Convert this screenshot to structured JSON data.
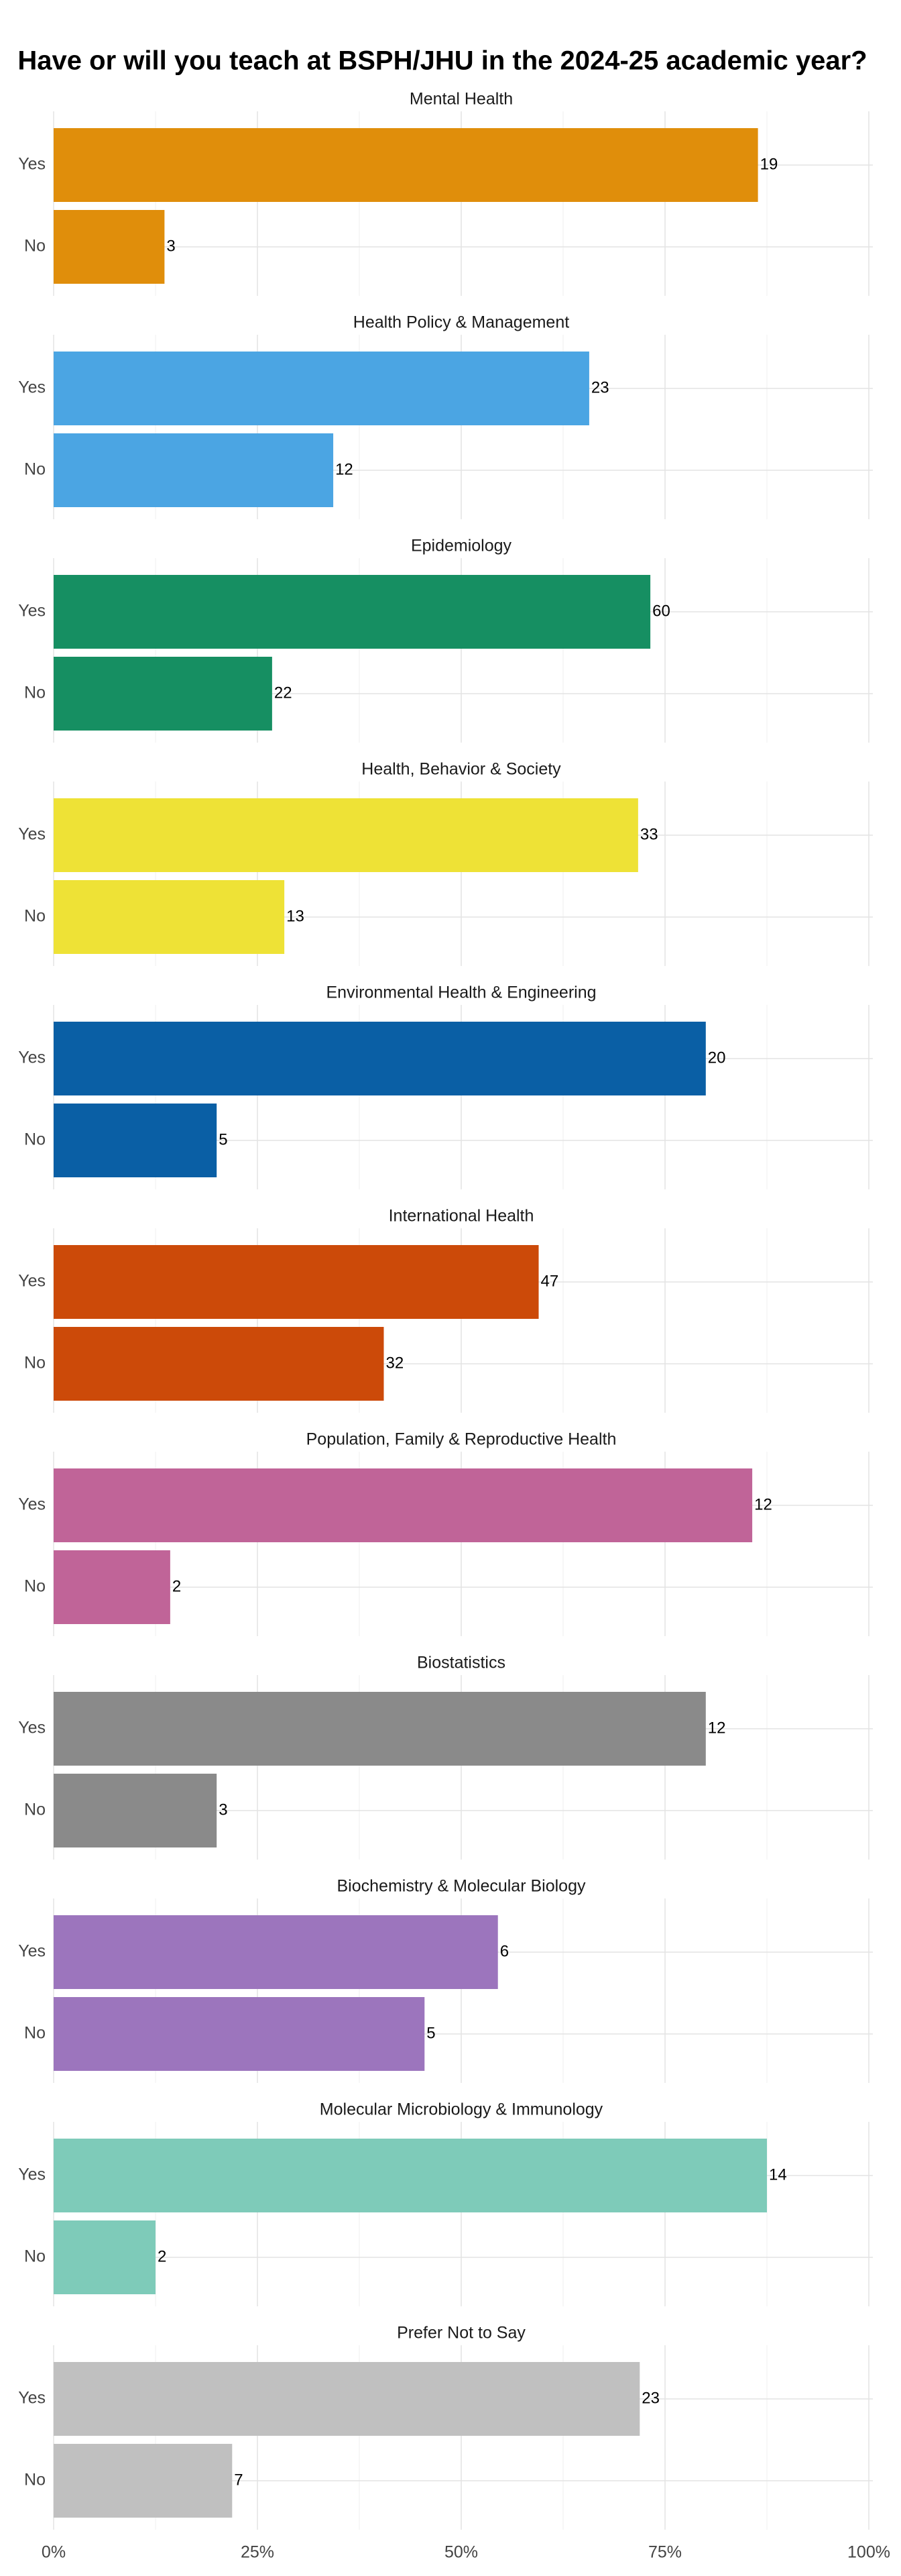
{
  "chart_data": {
    "type": "bar",
    "orientation": "horizontal",
    "title": "Have or will you teach at BSPH/JHU in the 2024-25 academic year?",
    "categories": [
      "Yes",
      "No"
    ],
    "panels": [
      {
        "name": "Mental Health",
        "color": "#E08E0B",
        "values": [
          86.4,
          13.6
        ],
        "counts": [
          19,
          3
        ]
      },
      {
        "name": "Health Policy & Management",
        "color": "#4BA5E3",
        "values": [
          65.7,
          34.3
        ],
        "counts": [
          23,
          12
        ]
      },
      {
        "name": "Epidemiology",
        "color": "#168F62",
        "values": [
          73.2,
          26.8
        ],
        "counts": [
          60,
          22
        ]
      },
      {
        "name": "Health, Behavior & Society",
        "color": "#EEE236",
        "values": [
          71.7,
          28.3
        ],
        "counts": [
          33,
          13
        ]
      },
      {
        "name": "Environmental Health & Engineering",
        "color": "#0A5FA5",
        "values": [
          80,
          20
        ],
        "counts": [
          20,
          5
        ]
      },
      {
        "name": "International Health",
        "color": "#CC4A09",
        "values": [
          59.5,
          40.5
        ],
        "counts": [
          47,
          32
        ]
      },
      {
        "name": "Population, Family & Reproductive Health",
        "color": "#C06498",
        "values": [
          85.7,
          14.3
        ],
        "counts": [
          12,
          2
        ]
      },
      {
        "name": "Biostatistics",
        "color": "#8A8A8A",
        "values": [
          80,
          20
        ],
        "counts": [
          12,
          3
        ]
      },
      {
        "name": "Biochemistry & Molecular Biology",
        "color": "#9C75BD",
        "values": [
          54.5,
          45.5
        ],
        "counts": [
          6,
          5
        ]
      },
      {
        "name": "Molecular Microbiology & Immunology",
        "color": "#7ECBB9",
        "values": [
          87.5,
          12.5
        ],
        "counts": [
          14,
          2
        ]
      },
      {
        "name": "Prefer Not to Say",
        "color": "#C0C0C0",
        "values": [
          71.9,
          21.9
        ],
        "counts": [
          23,
          7
        ]
      }
    ],
    "xlim": [
      0,
      100
    ],
    "xticks": [
      {
        "value": 0,
        "label": "0%"
      },
      {
        "value": 25,
        "label": "25%"
      },
      {
        "value": 50,
        "label": "50%"
      },
      {
        "value": 75,
        "label": "75%"
      },
      {
        "value": 100,
        "label": "100%"
      }
    ],
    "grid": true
  }
}
